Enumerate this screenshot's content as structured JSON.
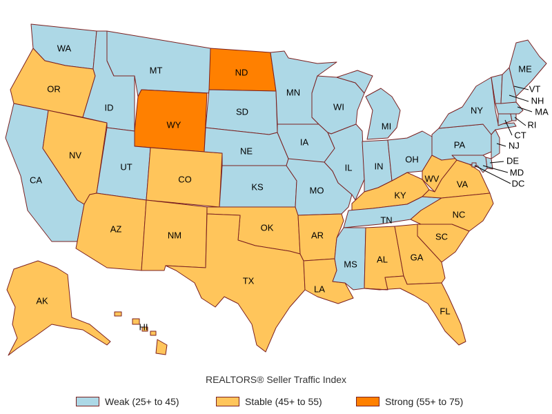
{
  "title": "REALTORS® Seller Traffic Index",
  "colors": {
    "weak": "#add8e6",
    "stable": "#ffc55b",
    "strong": "#ff8000",
    "border": "#7a1f1f"
  },
  "legend": [
    {
      "key": "weak",
      "label": "Weak (25+ to 45)"
    },
    {
      "key": "stable",
      "label": "Stable (45+ to 55)"
    },
    {
      "key": "strong",
      "label": "Strong (55+ to 75)"
    }
  ],
  "states": {
    "WA": "weak",
    "OR": "stable",
    "CA": "weak",
    "NV": "stable",
    "ID": "weak",
    "MT": "weak",
    "WY": "strong",
    "UT": "weak",
    "AZ": "stable",
    "CO": "stable",
    "NM": "stable",
    "ND": "strong",
    "SD": "weak",
    "NE": "weak",
    "KS": "weak",
    "OK": "stable",
    "TX": "stable",
    "MN": "weak",
    "IA": "weak",
    "MO": "weak",
    "AR": "stable",
    "LA": "stable",
    "WI": "weak",
    "IL": "weak",
    "MS": "weak",
    "MI": "weak",
    "IN": "weak",
    "KY": "stable",
    "TN": "weak",
    "AL": "stable",
    "OH": "weak",
    "WV": "stable",
    "VA": "stable",
    "NC": "stable",
    "SC": "stable",
    "GA": "stable",
    "FL": "stable",
    "PA": "weak",
    "NY": "weak",
    "ME": "weak",
    "VT": "weak",
    "NH": "weak",
    "MA": "weak",
    "RI": "weak",
    "CT": "weak",
    "NJ": "weak",
    "DE": "weak",
    "MD": "weak",
    "DC": "weak",
    "AK": "stable",
    "HI": "stable"
  },
  "labels": [
    "WA",
    "OR",
    "CA",
    "NV",
    "ID",
    "MT",
    "WY",
    "UT",
    "AZ",
    "CO",
    "NM",
    "ND",
    "SD",
    "NE",
    "KS",
    "OK",
    "TX",
    "MN",
    "IA",
    "MO",
    "AR",
    "LA",
    "WI",
    "IL",
    "MS",
    "MI",
    "IN",
    "KY",
    "TN",
    "AL",
    "OH",
    "WV",
    "VA",
    "NC",
    "SC",
    "GA",
    "FL",
    "PA",
    "NY",
    "ME",
    "VT",
    "NH",
    "MA",
    "RI",
    "CT",
    "NJ",
    "DE",
    "MD",
    "DC",
    "AK",
    "HI"
  ]
}
